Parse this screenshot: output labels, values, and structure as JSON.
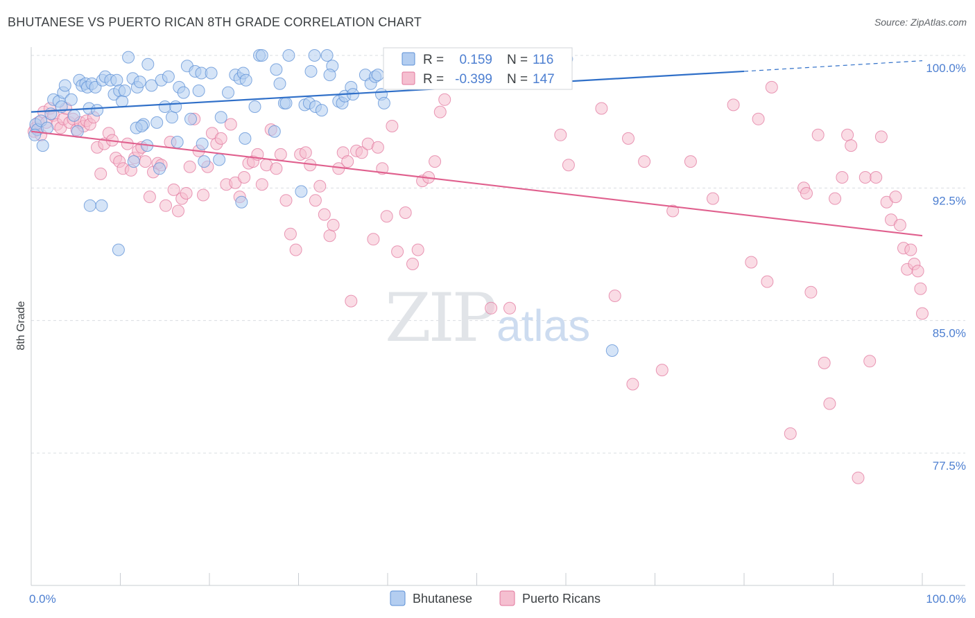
{
  "title": "BHUTANESE VS PUERTO RICAN 8TH GRADE CORRELATION CHART",
  "source": "Source: ZipAtlas.com",
  "watermark": {
    "zip": "ZIP",
    "atlas": "atlas"
  },
  "colors": {
    "blue": "#5b8fd6",
    "blue_fill": "#b3cdf0",
    "blue_line": "#2f6fc8",
    "pink": "#e2779d",
    "pink_fill": "#f5bfd0",
    "pink_line": "#e0608e",
    "axis_text": "#4d7fd1",
    "grid": "#d9dce1"
  },
  "legend": {
    "r_label": "R =",
    "n_label": "N =",
    "rows": [
      {
        "r": "0.159",
        "n": "116",
        "series": "Bhutanese"
      },
      {
        "r": "-0.399",
        "n": "147",
        "series": "Puerto Ricans"
      }
    ]
  },
  "bottom_legend": [
    "Bhutanese",
    "Puerto Ricans"
  ],
  "chart_data": {
    "type": "scatter",
    "title": "BHUTANESE VS PUERTO RICAN 8TH GRADE CORRELATION CHART",
    "xlabel": "",
    "ylabel": "8th Grade",
    "xlim": [
      0,
      100
    ],
    "ylim": [
      70.0,
      100.5
    ],
    "x_tick_labels": [
      "0.0%",
      "100.0%"
    ],
    "y_ticks": [
      100.0,
      92.5,
      85.0,
      77.5
    ],
    "y_tick_labels": [
      "100.0%",
      "92.5%",
      "85.0%",
      "77.5%"
    ],
    "grid": true,
    "legend_position": "top-center",
    "series": [
      {
        "name": "Bhutanese",
        "r": 0.159,
        "n": 116,
        "trend": {
          "x": [
            0,
            80
          ],
          "y": [
            96.8,
            99.1
          ]
        },
        "trend_dashed": {
          "x": [
            80,
            100
          ],
          "y": [
            99.1,
            99.7
          ]
        },
        "points": [
          [
            0.5,
            96.1
          ],
          [
            0.7,
            95.8
          ],
          [
            1.1,
            96.3
          ],
          [
            0.4,
            95.5
          ],
          [
            1.3,
            94.9
          ],
          [
            1.8,
            95.9
          ],
          [
            2.2,
            96.7
          ],
          [
            2.5,
            97.5
          ],
          [
            3.1,
            97.4
          ],
          [
            3.4,
            97.1
          ],
          [
            3.6,
            97.9
          ],
          [
            3.8,
            98.3
          ],
          [
            4.5,
            97.5
          ],
          [
            4.8,
            96.6
          ],
          [
            5.2,
            95.7
          ],
          [
            5.4,
            98.6
          ],
          [
            5.7,
            98.3
          ],
          [
            6.1,
            98.4
          ],
          [
            6.3,
            98.2
          ],
          [
            6.5,
            97.0
          ],
          [
            6.8,
            98.4
          ],
          [
            7.2,
            98.2
          ],
          [
            7.4,
            96.9
          ],
          [
            8.0,
            98.6
          ],
          [
            8.3,
            98.8
          ],
          [
            8.9,
            98.6
          ],
          [
            9.3,
            97.8
          ],
          [
            9.6,
            98.6
          ],
          [
            9.9,
            98.0
          ],
          [
            10.2,
            97.4
          ],
          [
            10.5,
            98.0
          ],
          [
            10.9,
            99.9
          ],
          [
            11.4,
            98.7
          ],
          [
            11.9,
            98.2
          ],
          [
            12.2,
            98.5
          ],
          [
            12.6,
            96.1
          ],
          [
            13.1,
            99.5
          ],
          [
            13.5,
            98.3
          ],
          [
            14.1,
            96.2
          ],
          [
            14.6,
            98.6
          ],
          [
            15.0,
            97.1
          ],
          [
            15.4,
            98.8
          ],
          [
            15.8,
            96.5
          ],
          [
            16.2,
            97.1
          ],
          [
            16.6,
            98.2
          ],
          [
            17.1,
            97.9
          ],
          [
            17.5,
            99.4
          ],
          [
            17.9,
            96.4
          ],
          [
            18.4,
            99.1
          ],
          [
            18.8,
            98.0
          ],
          [
            19.1,
            99.0
          ],
          [
            20.2,
            99.0
          ],
          [
            21.3,
            96.5
          ],
          [
            22.1,
            97.9
          ],
          [
            22.9,
            98.9
          ],
          [
            23.4,
            98.7
          ],
          [
            23.8,
            99.0
          ],
          [
            24.1,
            98.6
          ],
          [
            25.1,
            97.1
          ],
          [
            25.6,
            100.0
          ],
          [
            25.9,
            100.0
          ],
          [
            27.5,
            99.2
          ],
          [
            27.9,
            98.4
          ],
          [
            28.4,
            97.3
          ],
          [
            28.6,
            97.3
          ],
          [
            28.9,
            100.0
          ],
          [
            30.7,
            97.2
          ],
          [
            31.2,
            97.3
          ],
          [
            31.4,
            99.1
          ],
          [
            31.9,
            97.1
          ],
          [
            32.6,
            96.9
          ],
          [
            31.8,
            100.0
          ],
          [
            33.2,
            100.0
          ],
          [
            33.8,
            99.4
          ],
          [
            33.5,
            98.9
          ],
          [
            34.5,
            97.4
          ],
          [
            34.9,
            97.3
          ],
          [
            35.2,
            97.7
          ],
          [
            35.9,
            98.2
          ],
          [
            36.1,
            97.8
          ],
          [
            37.5,
            98.9
          ],
          [
            38.1,
            98.4
          ],
          [
            38.6,
            98.8
          ],
          [
            38.9,
            98.9
          ],
          [
            39.3,
            97.8
          ],
          [
            39.6,
            97.3
          ],
          [
            40.2,
            98.7
          ],
          [
            41.1,
            99.1
          ],
          [
            42.3,
            99.0
          ],
          [
            43.8,
            99.0
          ],
          [
            44.6,
            100.0
          ],
          [
            45.2,
            99.4
          ],
          [
            46.0,
            99.5
          ],
          [
            46.8,
            99.3
          ],
          [
            47.5,
            100.0
          ],
          [
            48.3,
            99.9
          ],
          [
            49.1,
            99.7
          ],
          [
            50.0,
            99.9
          ],
          [
            50.8,
            99.5
          ],
          [
            52.1,
            100.0
          ],
          [
            53.4,
            99.6
          ],
          [
            54.6,
            99.8
          ],
          [
            56.0,
            99.5
          ],
          [
            57.2,
            99.8
          ],
          [
            58.5,
            99.2
          ],
          [
            60.1,
            99.8
          ],
          [
            6.6,
            91.5
          ],
          [
            7.9,
            91.5
          ],
          [
            9.8,
            89.0
          ],
          [
            11.5,
            94.0
          ],
          [
            11.8,
            95.9
          ],
          [
            12.4,
            96.0
          ],
          [
            13.0,
            94.9
          ],
          [
            14.4,
            93.6
          ],
          [
            16.4,
            95.1
          ],
          [
            19.2,
            95.0
          ],
          [
            19.4,
            94.0
          ],
          [
            21.1,
            94.1
          ],
          [
            23.6,
            91.7
          ],
          [
            24.0,
            95.3
          ],
          [
            27.3,
            95.7
          ],
          [
            30.3,
            92.3
          ],
          [
            65.2,
            83.3
          ]
        ]
      },
      {
        "name": "Puerto Ricans",
        "r": -0.399,
        "n": 147,
        "trend": {
          "x": [
            0,
            100
          ],
          "y": [
            95.7,
            89.8
          ]
        },
        "points": [
          [
            0.3,
            95.7
          ],
          [
            0.5,
            95.9
          ],
          [
            0.8,
            96.2
          ],
          [
            1.1,
            95.5
          ],
          [
            1.4,
            96.8
          ],
          [
            1.7,
            96.2
          ],
          [
            2.1,
            97.0
          ],
          [
            2.5,
            96.6
          ],
          [
            2.9,
            96.1
          ],
          [
            3.3,
            95.9
          ],
          [
            3.6,
            96.4
          ],
          [
            3.9,
            97.0
          ],
          [
            4.3,
            96.2
          ],
          [
            4.7,
            96.4
          ],
          [
            5.1,
            95.8
          ],
          [
            5.5,
            96.2
          ],
          [
            5.9,
            96.0
          ],
          [
            6.2,
            96.3
          ],
          [
            6.6,
            96.1
          ],
          [
            7.0,
            96.5
          ],
          [
            7.4,
            94.8
          ],
          [
            7.8,
            93.3
          ],
          [
            8.2,
            95.0
          ],
          [
            8.7,
            95.6
          ],
          [
            9.1,
            95.2
          ],
          [
            9.5,
            94.2
          ],
          [
            9.9,
            94.0
          ],
          [
            10.3,
            93.6
          ],
          [
            10.8,
            95.0
          ],
          [
            11.2,
            93.5
          ],
          [
            11.6,
            94.2
          ],
          [
            12.0,
            94.6
          ],
          [
            12.4,
            94.8
          ],
          [
            12.8,
            94.0
          ],
          [
            13.3,
            92.0
          ],
          [
            13.7,
            93.4
          ],
          [
            14.2,
            93.9
          ],
          [
            14.6,
            93.8
          ],
          [
            15.1,
            91.5
          ],
          [
            15.6,
            95.1
          ],
          [
            16.0,
            92.4
          ],
          [
            16.5,
            91.2
          ],
          [
            16.9,
            91.9
          ],
          [
            17.4,
            92.2
          ],
          [
            17.8,
            93.7
          ],
          [
            18.3,
            96.4
          ],
          [
            18.8,
            94.6
          ],
          [
            19.3,
            92.1
          ],
          [
            19.8,
            93.7
          ],
          [
            20.3,
            95.6
          ],
          [
            20.8,
            95.0
          ],
          [
            21.3,
            95.3
          ],
          [
            21.9,
            92.7
          ],
          [
            22.4,
            96.1
          ],
          [
            22.9,
            92.8
          ],
          [
            23.4,
            92.0
          ],
          [
            23.9,
            93.1
          ],
          [
            24.4,
            93.9
          ],
          [
            24.9,
            94.0
          ],
          [
            25.4,
            94.4
          ],
          [
            25.9,
            92.7
          ],
          [
            26.4,
            93.8
          ],
          [
            26.9,
            95.8
          ],
          [
            27.5,
            93.6
          ],
          [
            28.0,
            94.4
          ],
          [
            28.6,
            91.8
          ],
          [
            29.1,
            89.9
          ],
          [
            29.7,
            89.0
          ],
          [
            30.2,
            94.4
          ],
          [
            30.8,
            94.5
          ],
          [
            31.3,
            93.8
          ],
          [
            31.9,
            91.8
          ],
          [
            32.4,
            92.6
          ],
          [
            32.9,
            91.0
          ],
          [
            33.5,
            89.8
          ],
          [
            33.9,
            90.4
          ],
          [
            34.5,
            93.6
          ],
          [
            35.0,
            94.5
          ],
          [
            35.5,
            94.0
          ],
          [
            35.9,
            86.1
          ],
          [
            36.5,
            94.6
          ],
          [
            37.1,
            94.5
          ],
          [
            37.8,
            95.0
          ],
          [
            38.4,
            89.6
          ],
          [
            38.9,
            94.8
          ],
          [
            39.4,
            93.6
          ],
          [
            39.9,
            90.9
          ],
          [
            40.5,
            96.0
          ],
          [
            41.1,
            88.9
          ],
          [
            42.0,
            91.1
          ],
          [
            42.8,
            88.2
          ],
          [
            43.4,
            89.0
          ],
          [
            43.9,
            92.9
          ],
          [
            44.6,
            93.1
          ],
          [
            45.3,
            94.0
          ],
          [
            45.9,
            96.8
          ],
          [
            46.4,
            97.5
          ],
          [
            47.3,
            100.0
          ],
          [
            48.0,
            98.8
          ],
          [
            51.6,
            85.7
          ],
          [
            53.7,
            85.7
          ],
          [
            55.1,
            100.0
          ],
          [
            57.1,
            100.0
          ],
          [
            59.4,
            95.5
          ],
          [
            60.3,
            93.8
          ],
          [
            64.0,
            97.0
          ],
          [
            65.5,
            86.4
          ],
          [
            67.0,
            95.3
          ],
          [
            67.5,
            81.4
          ],
          [
            68.8,
            94.0
          ],
          [
            70.8,
            82.2
          ],
          [
            72.0,
            91.2
          ],
          [
            74.0,
            94.0
          ],
          [
            76.5,
            91.9
          ],
          [
            78.8,
            97.2
          ],
          [
            80.8,
            88.3
          ],
          [
            81.6,
            96.4
          ],
          [
            82.6,
            87.2
          ],
          [
            83.1,
            98.2
          ],
          [
            85.2,
            78.6
          ],
          [
            86.7,
            92.5
          ],
          [
            87.0,
            92.2
          ],
          [
            87.5,
            86.6
          ],
          [
            88.3,
            95.5
          ],
          [
            89.0,
            82.6
          ],
          [
            89.6,
            80.3
          ],
          [
            90.2,
            91.9
          ],
          [
            91.0,
            93.1
          ],
          [
            91.6,
            95.5
          ],
          [
            92.0,
            94.9
          ],
          [
            92.8,
            76.1
          ],
          [
            93.6,
            93.1
          ],
          [
            94.1,
            82.7
          ],
          [
            94.8,
            93.1
          ],
          [
            95.4,
            95.4
          ],
          [
            96.0,
            91.7
          ],
          [
            96.5,
            90.7
          ],
          [
            97.0,
            92.0
          ],
          [
            97.5,
            90.4
          ],
          [
            97.9,
            89.1
          ],
          [
            98.3,
            87.9
          ],
          [
            98.7,
            89.0
          ],
          [
            99.1,
            88.2
          ],
          [
            99.5,
            87.8
          ],
          [
            99.8,
            86.8
          ],
          [
            100.0,
            85.4
          ]
        ]
      }
    ]
  }
}
